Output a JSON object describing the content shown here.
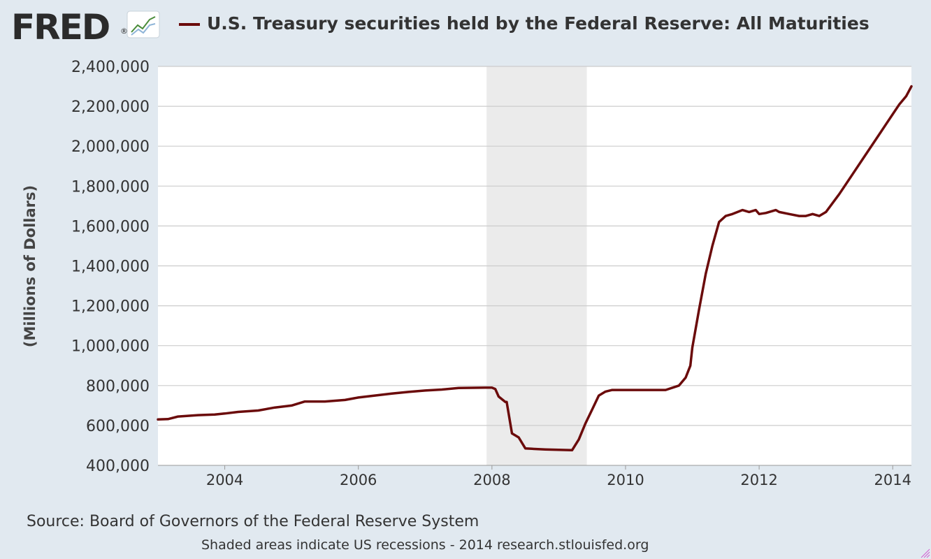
{
  "header": {
    "logo_text": "FRED",
    "logo_mark": "®",
    "title": "U.S. Treasury securities held by the Federal Reserve: All Maturities"
  },
  "footer": {
    "source": "Source: Board of Governors of the Federal Reserve System",
    "note": "Shaded areas indicate US recessions - 2014 research.stlouisfed.org"
  },
  "colors": {
    "background": "#e1e9f0",
    "plot_background": "#ffffff",
    "series": "#6b0b0b",
    "recession_shade": "#ebebeb",
    "grid": "#cccccc"
  },
  "chart_data": {
    "type": "line",
    "title": "U.S. Treasury securities held by the Federal Reserve: All Maturities",
    "xlabel": "",
    "ylabel": "(Millions of Dollars)",
    "xlim": [
      2003.0,
      2014.28
    ],
    "ylim": [
      400000,
      2400000
    ],
    "grid": true,
    "x_ticks": [
      {
        "value": 2004,
        "label": "2004"
      },
      {
        "value": 2006,
        "label": "2006"
      },
      {
        "value": 2008,
        "label": "2008"
      },
      {
        "value": 2010,
        "label": "2010"
      },
      {
        "value": 2012,
        "label": "2012"
      },
      {
        "value": 2014,
        "label": "2014"
      }
    ],
    "y_ticks": [
      {
        "value": 400000,
        "label": "400,000"
      },
      {
        "value": 600000,
        "label": "600,000"
      },
      {
        "value": 800000,
        "label": "800,000"
      },
      {
        "value": 1000000,
        "label": "1,000,000"
      },
      {
        "value": 1200000,
        "label": "1,200,000"
      },
      {
        "value": 1400000,
        "label": "1,400,000"
      },
      {
        "value": 1600000,
        "label": "1,600,000"
      },
      {
        "value": 1800000,
        "label": "1,800,000"
      },
      {
        "value": 2000000,
        "label": "2,000,000"
      },
      {
        "value": 2200000,
        "label": "2,200,000"
      },
      {
        "value": 2400000,
        "label": "2,400,000"
      }
    ],
    "recessions": [
      {
        "start": 2007.92,
        "end": 2009.42
      }
    ],
    "series": [
      {
        "color": "#6b0b0b",
        "x": [
          2003.0,
          2003.15,
          2003.3,
          2003.6,
          2003.85,
          2004.0,
          2004.2,
          2004.5,
          2004.75,
          2005.0,
          2005.2,
          2005.5,
          2005.8,
          2006.0,
          2006.2,
          2006.5,
          2006.75,
          2007.0,
          2007.25,
          2007.5,
          2007.9,
          2008.0,
          2008.05,
          2008.1,
          2008.2,
          2008.22,
          2008.3,
          2008.4,
          2008.5,
          2008.6,
          2008.8,
          2009.0,
          2009.2,
          2009.3,
          2009.4,
          2009.5,
          2009.6,
          2009.7,
          2009.8,
          2010.0,
          2010.3,
          2010.6,
          2010.8,
          2010.9,
          2010.97,
          2011.0,
          2011.1,
          2011.2,
          2011.3,
          2011.4,
          2011.5,
          2011.6,
          2011.75,
          2011.85,
          2011.95,
          2012.0,
          2012.1,
          2012.25,
          2012.3,
          2012.45,
          2012.6,
          2012.7,
          2012.8,
          2012.9,
          2013.0,
          2013.2,
          2013.4,
          2013.6,
          2013.8,
          2014.0,
          2014.1,
          2014.2,
          2014.28
        ],
        "y": [
          630000,
          632000,
          645000,
          652000,
          655000,
          660000,
          668000,
          675000,
          690000,
          700000,
          720000,
          720000,
          728000,
          740000,
          748000,
          760000,
          768000,
          775000,
          780000,
          788000,
          790000,
          790000,
          783000,
          745000,
          718000,
          718000,
          560000,
          540000,
          485000,
          483000,
          480000,
          478000,
          476000,
          530000,
          610000,
          680000,
          750000,
          770000,
          778000,
          778000,
          778000,
          778000,
          800000,
          840000,
          900000,
          990000,
          1180000,
          1360000,
          1500000,
          1620000,
          1650000,
          1660000,
          1680000,
          1670000,
          1680000,
          1660000,
          1665000,
          1680000,
          1670000,
          1660000,
          1650000,
          1650000,
          1660000,
          1650000,
          1670000,
          1760000,
          1860000,
          1960000,
          2060000,
          2160000,
          2210000,
          2250000,
          2300000
        ]
      }
    ]
  }
}
